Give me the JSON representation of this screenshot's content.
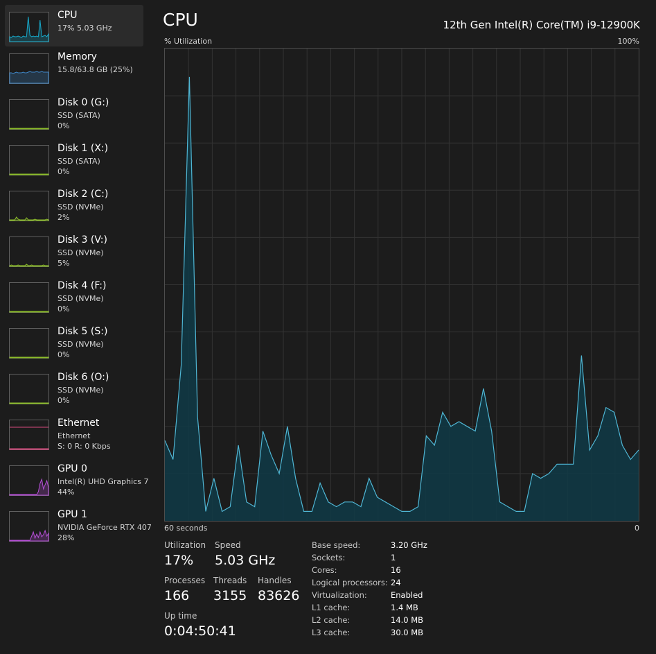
{
  "sidebar": {
    "items": [
      {
        "title": "CPU",
        "line1": "17%  5.03 GHz",
        "line2": "",
        "color": "#17a8c9",
        "selected": true
      },
      {
        "title": "Memory",
        "line1": "15.8/63.8 GB (25%)",
        "line2": "",
        "color": "#3f87c8"
      },
      {
        "title": "Disk 0 (G:)",
        "line1": "SSD (SATA)",
        "line2": "0%",
        "color": "#8cbd2a"
      },
      {
        "title": "Disk 1 (X:)",
        "line1": "SSD (SATA)",
        "line2": "0%",
        "color": "#8cbd2a"
      },
      {
        "title": "Disk 2 (C:)",
        "line1": "SSD (NVMe)",
        "line2": "2%",
        "color": "#8cbd2a"
      },
      {
        "title": "Disk 3 (V:)",
        "line1": "SSD (NVMe)",
        "line2": "5%",
        "color": "#8cbd2a"
      },
      {
        "title": "Disk 4 (F:)",
        "line1": "SSD (NVMe)",
        "line2": "0%",
        "color": "#8cbd2a"
      },
      {
        "title": "Disk 5 (S:)",
        "line1": "SSD (NVMe)",
        "line2": "0%",
        "color": "#8cbd2a"
      },
      {
        "title": "Disk 6 (O:)",
        "line1": "SSD (NVMe)",
        "line2": "0%",
        "color": "#8cbd2a"
      },
      {
        "title": "Ethernet",
        "line1": "Ethernet",
        "line2": "S: 0  R: 0 Kbps",
        "color": "#d74a7e"
      },
      {
        "title": "GPU 0",
        "line1": "Intel(R) UHD Graphics 7",
        "line2": "44%",
        "color": "#b74fd8"
      },
      {
        "title": "GPU 1",
        "line1": "NVIDIA GeForce RTX 407",
        "line2": "28%",
        "color": "#b74fd8"
      }
    ]
  },
  "header": {
    "title": "CPU",
    "model": "12th Gen Intel(R) Core(TM) i9-12900K"
  },
  "graph": {
    "y_label": "% Utilization",
    "y_max_label": "100%",
    "x_left_label": "60 seconds",
    "x_right_label": "0",
    "line_color": "#4fb6d4",
    "fill_color": "#0f3a47",
    "grid_color": "#333333",
    "values": [
      17,
      13,
      33,
      94,
      22,
      2,
      9,
      2,
      3,
      16,
      4,
      3,
      19,
      14,
      10,
      20,
      9,
      2,
      2,
      8,
      4,
      3,
      4,
      4,
      3,
      9,
      5,
      4,
      3,
      2,
      2,
      3,
      18,
      16,
      23,
      20,
      21,
      20,
      19,
      28,
      19,
      4,
      3,
      2,
      2,
      10,
      9,
      10,
      12,
      12,
      12,
      35,
      15,
      18,
      24,
      23,
      16,
      13,
      15
    ]
  },
  "stats": {
    "utilization": {
      "label": "Utilization",
      "value": "17%"
    },
    "speed": {
      "label": "Speed",
      "value": "5.03 GHz"
    },
    "processes": {
      "label": "Processes",
      "value": "166"
    },
    "threads": {
      "label": "Threads",
      "value": "3155"
    },
    "handles": {
      "label": "Handles",
      "value": "83626"
    },
    "uptime": {
      "label": "Up time",
      "value": "0:04:50:41"
    }
  },
  "specs": [
    {
      "label": "Base speed:",
      "value": "3.20 GHz"
    },
    {
      "label": "Sockets:",
      "value": "1"
    },
    {
      "label": "Cores:",
      "value": "16"
    },
    {
      "label": "Logical processors:",
      "value": "24"
    },
    {
      "label": "Virtualization:",
      "value": "Enabled"
    },
    {
      "label": "L1 cache:",
      "value": "1.4 MB"
    },
    {
      "label": "L2 cache:",
      "value": "14.0 MB"
    },
    {
      "label": "L3 cache:",
      "value": "30.0 MB"
    }
  ]
}
